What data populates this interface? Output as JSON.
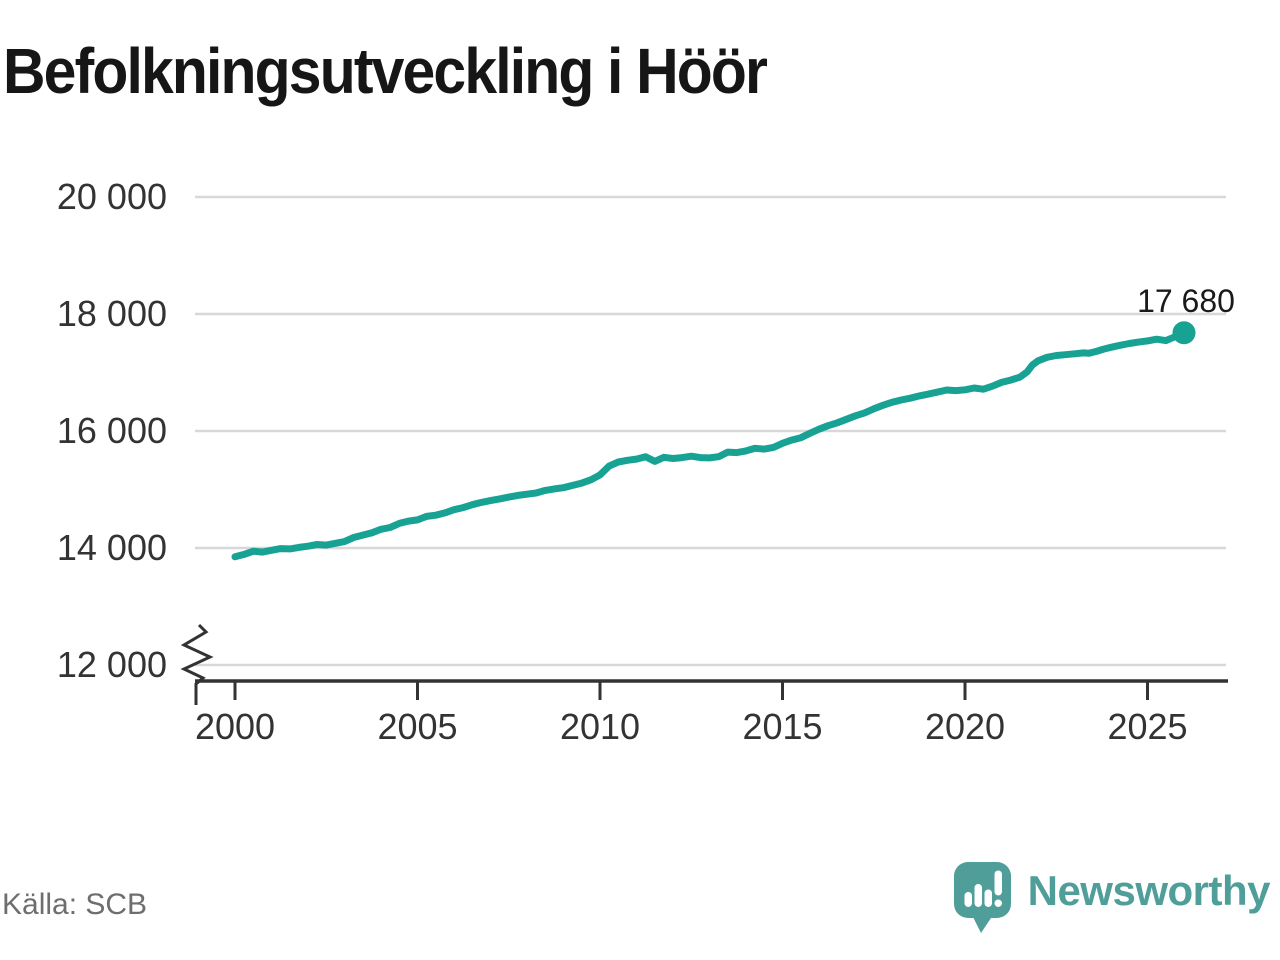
{
  "chart": {
    "title": "Befolkningsutveckling i Höör",
    "colors": {
      "line": "#17a294",
      "grid": "#d8d8d8",
      "axis": "#333333",
      "tick_label": "#333333",
      "value_label": "#1a1a1a",
      "source_text": "#6e6e6e",
      "brand": "#4f9e99",
      "logo_glyph": "#ffffff"
    }
  },
  "chart_data": {
    "type": "line",
    "title": "Befolkningsutveckling i Höör",
    "xlabel": "",
    "ylabel": "",
    "x_ticks": [
      2000,
      2005,
      2010,
      2015,
      2020,
      2025
    ],
    "x_tick_labels": [
      "2000",
      "2005",
      "2010",
      "2015",
      "2020",
      "2025"
    ],
    "y_ticks": [
      12000,
      14000,
      16000,
      18000,
      20000
    ],
    "y_tick_labels": [
      "12 000",
      "14 000",
      "16 000",
      "18 000",
      "20 000"
    ],
    "ylim_display": [
      12000,
      20000
    ],
    "y_axis_break": true,
    "grid": "horizontal",
    "legend": "none",
    "series": [
      {
        "name": "Befolkning",
        "points": [
          [
            2000.0,
            13850
          ],
          [
            2000.25,
            13890
          ],
          [
            2000.5,
            13945
          ],
          [
            2000.75,
            13930
          ],
          [
            2001.0,
            13960
          ],
          [
            2001.25,
            13990
          ],
          [
            2001.5,
            13985
          ],
          [
            2001.75,
            14010
          ],
          [
            2002.0,
            14030
          ],
          [
            2002.25,
            14060
          ],
          [
            2002.5,
            14050
          ],
          [
            2002.75,
            14080
          ],
          [
            2003.0,
            14110
          ],
          [
            2003.25,
            14180
          ],
          [
            2003.5,
            14220
          ],
          [
            2003.75,
            14260
          ],
          [
            2004.0,
            14320
          ],
          [
            2004.25,
            14350
          ],
          [
            2004.5,
            14420
          ],
          [
            2004.75,
            14460
          ],
          [
            2005.0,
            14480
          ],
          [
            2005.25,
            14540
          ],
          [
            2005.5,
            14560
          ],
          [
            2005.75,
            14600
          ],
          [
            2006.0,
            14655
          ],
          [
            2006.25,
            14690
          ],
          [
            2006.5,
            14740
          ],
          [
            2006.75,
            14780
          ],
          [
            2007.0,
            14810
          ],
          [
            2007.25,
            14840
          ],
          [
            2007.5,
            14870
          ],
          [
            2007.75,
            14900
          ],
          [
            2008.0,
            14920
          ],
          [
            2008.25,
            14940
          ],
          [
            2008.5,
            14985
          ],
          [
            2008.75,
            15010
          ],
          [
            2009.0,
            15030
          ],
          [
            2009.25,
            15070
          ],
          [
            2009.5,
            15110
          ],
          [
            2009.75,
            15165
          ],
          [
            2010.0,
            15250
          ],
          [
            2010.25,
            15400
          ],
          [
            2010.5,
            15470
          ],
          [
            2010.75,
            15500
          ],
          [
            2011.0,
            15520
          ],
          [
            2011.25,
            15560
          ],
          [
            2011.5,
            15480
          ],
          [
            2011.75,
            15550
          ],
          [
            2012.0,
            15530
          ],
          [
            2012.25,
            15545
          ],
          [
            2012.5,
            15570
          ],
          [
            2012.75,
            15545
          ],
          [
            2013.0,
            15540
          ],
          [
            2013.25,
            15560
          ],
          [
            2013.5,
            15640
          ],
          [
            2013.75,
            15630
          ],
          [
            2014.0,
            15660
          ],
          [
            2014.25,
            15705
          ],
          [
            2014.5,
            15690
          ],
          [
            2014.75,
            15720
          ],
          [
            2015.0,
            15790
          ],
          [
            2015.25,
            15845
          ],
          [
            2015.5,
            15885
          ],
          [
            2015.75,
            15960
          ],
          [
            2016.0,
            16030
          ],
          [
            2016.25,
            16090
          ],
          [
            2016.5,
            16140
          ],
          [
            2016.75,
            16200
          ],
          [
            2017.0,
            16260
          ],
          [
            2017.25,
            16310
          ],
          [
            2017.5,
            16380
          ],
          [
            2017.75,
            16440
          ],
          [
            2018.0,
            16490
          ],
          [
            2018.25,
            16530
          ],
          [
            2018.5,
            16560
          ],
          [
            2018.75,
            16600
          ],
          [
            2019.0,
            16630
          ],
          [
            2019.25,
            16665
          ],
          [
            2019.5,
            16700
          ],
          [
            2019.75,
            16690
          ],
          [
            2020.0,
            16705
          ],
          [
            2020.25,
            16735
          ],
          [
            2020.5,
            16715
          ],
          [
            2020.75,
            16765
          ],
          [
            2021.0,
            16830
          ],
          [
            2021.25,
            16870
          ],
          [
            2021.5,
            16920
          ],
          [
            2021.7,
            17010
          ],
          [
            2021.85,
            17130
          ],
          [
            2022.0,
            17200
          ],
          [
            2022.25,
            17260
          ],
          [
            2022.5,
            17290
          ],
          [
            2022.75,
            17305
          ],
          [
            2023.0,
            17320
          ],
          [
            2023.25,
            17335
          ],
          [
            2023.4,
            17330
          ],
          [
            2023.6,
            17360
          ],
          [
            2023.8,
            17400
          ],
          [
            2024.0,
            17430
          ],
          [
            2024.25,
            17465
          ],
          [
            2024.5,
            17495
          ],
          [
            2024.75,
            17520
          ],
          [
            2025.0,
            17540
          ],
          [
            2025.25,
            17570
          ],
          [
            2025.5,
            17545
          ],
          [
            2025.75,
            17610
          ],
          [
            2026.0,
            17680
          ]
        ]
      }
    ],
    "end_point": {
      "x": 2026.0,
      "y": 17680,
      "label": "17 680"
    }
  },
  "footer": {
    "source": "Källa: SCB",
    "brand": "Newsworthy"
  }
}
